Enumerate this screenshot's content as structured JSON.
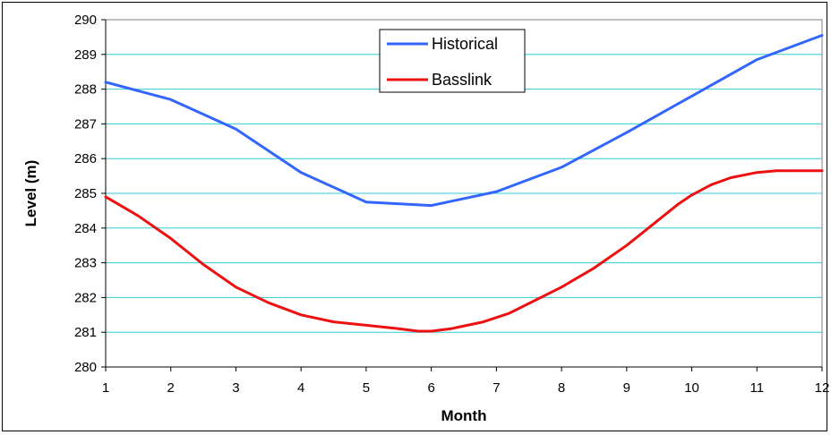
{
  "chart_data": {
    "type": "line",
    "xlabel": "Month",
    "ylabel": "Level (m)",
    "xlim": [
      1,
      12
    ],
    "ylim": [
      280,
      290
    ],
    "x_ticks": [
      1,
      2,
      3,
      4,
      5,
      6,
      7,
      8,
      9,
      10,
      11,
      12
    ],
    "y_ticks": [
      280,
      281,
      282,
      283,
      284,
      285,
      286,
      287,
      288,
      289,
      290
    ],
    "grid": "horizontal",
    "legend_position": "top-center",
    "plot_background": "#ffffff",
    "grid_color": "#33ccdd",
    "series": [
      {
        "name": "Historical",
        "color": "#3366ff",
        "points": [
          [
            1,
            288.2
          ],
          [
            2,
            287.7
          ],
          [
            3,
            286.85
          ],
          [
            4,
            285.6
          ],
          [
            5,
            284.75
          ],
          [
            6,
            284.65
          ],
          [
            7,
            285.05
          ],
          [
            8,
            285.75
          ],
          [
            9,
            286.75
          ],
          [
            10,
            287.8
          ],
          [
            11,
            288.85
          ],
          [
            12,
            289.55
          ]
        ]
      },
      {
        "name": "Basslink",
        "color": "#ee1111",
        "points": [
          [
            1,
            284.9
          ],
          [
            1.5,
            284.35
          ],
          [
            2,
            283.7
          ],
          [
            2.5,
            282.95
          ],
          [
            3,
            282.3
          ],
          [
            3.5,
            281.85
          ],
          [
            4,
            281.5
          ],
          [
            4.5,
            281.3
          ],
          [
            5,
            281.2
          ],
          [
            5.5,
            281.1
          ],
          [
            5.8,
            281.03
          ],
          [
            6,
            281.03
          ],
          [
            6.3,
            281.1
          ],
          [
            6.8,
            281.3
          ],
          [
            7.2,
            281.55
          ],
          [
            8,
            282.3
          ],
          [
            8.5,
            282.85
          ],
          [
            9,
            283.5
          ],
          [
            9.5,
            284.25
          ],
          [
            9.8,
            284.7
          ],
          [
            10,
            284.95
          ],
          [
            10.3,
            285.25
          ],
          [
            10.6,
            285.45
          ],
          [
            11,
            285.6
          ],
          [
            11.3,
            285.65
          ],
          [
            12,
            285.65
          ]
        ]
      }
    ]
  }
}
